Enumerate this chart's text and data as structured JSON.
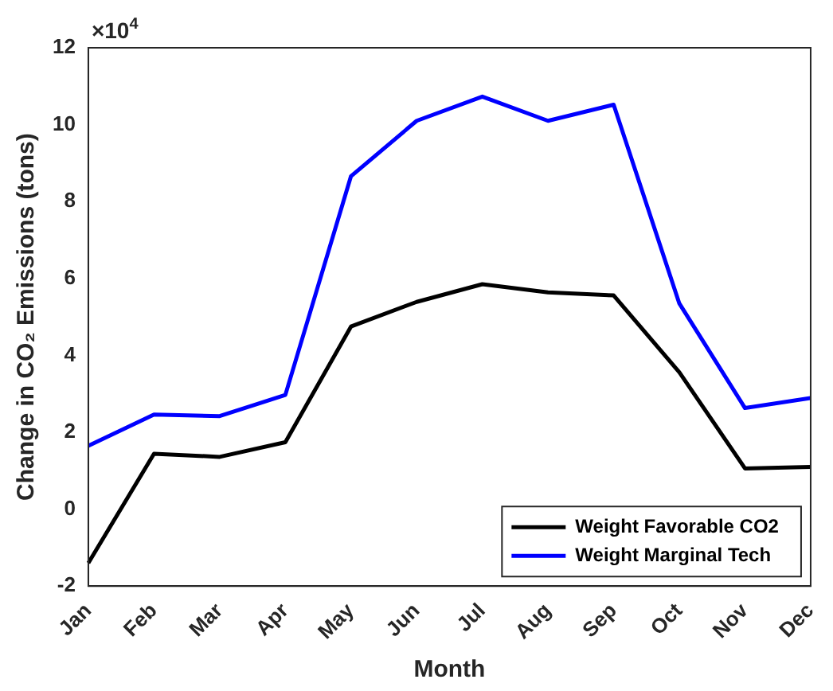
{
  "chart_data": {
    "type": "line",
    "xlabel": "Month",
    "ylabel": "Change in CO₂ Emissions (tons)",
    "categories": [
      "Jan",
      "Feb",
      "Mar",
      "Apr",
      "May",
      "Jun",
      "Jul",
      "Aug",
      "Sep",
      "Oct",
      "Nov",
      "Dec"
    ],
    "series": [
      {
        "name": "Weight Favorable CO2",
        "color": "#000000",
        "values": [
          -1.4,
          1.44,
          1.36,
          1.74,
          4.75,
          5.39,
          5.85,
          5.64,
          5.56,
          3.56,
          1.06,
          1.1
        ]
      },
      {
        "name": "Weight Marginal Tech",
        "color": "#0000ff",
        "values": [
          1.65,
          2.46,
          2.42,
          2.97,
          8.66,
          10.1,
          10.73,
          10.1,
          10.52,
          5.35,
          2.63,
          2.89
        ]
      }
    ],
    "ylim": [
      -2,
      12
    ],
    "yticks": [
      -2,
      0,
      2,
      4,
      6,
      8,
      10,
      12
    ],
    "annotations": [
      "×10$^{4}$"
    ],
    "grid": false,
    "legend": "bottom right",
    "marker": "none",
    "line_style": "solid"
  }
}
